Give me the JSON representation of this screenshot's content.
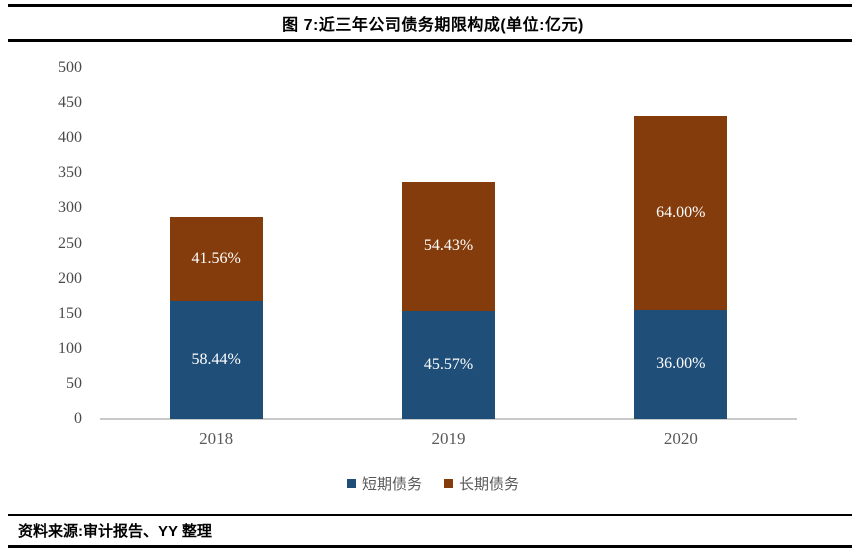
{
  "header": {
    "title": "图 7:近三年公司债务期限构成(单位:亿元)"
  },
  "footer": {
    "source": "资料来源:审计报告、YY 整理"
  },
  "chart_data": {
    "type": "bar",
    "subtype": "stacked",
    "title": "图 7:近三年公司债务期限构成(单位:亿元)",
    "unit": "亿元",
    "categories": [
      "2018",
      "2019",
      "2020"
    ],
    "series": [
      {
        "name": "短期债务",
        "color": "#1F4E79",
        "values": [
          168.3,
          154.0,
          155.5
        ],
        "percent_labels": [
          "58.44%",
          "45.57%",
          "36.00%"
        ]
      },
      {
        "name": "长期债务",
        "color": "#843C0C",
        "values": [
          119.7,
          184.0,
          276.5
        ],
        "percent_labels": [
          "41.56%",
          "54.43%",
          "64.00%"
        ]
      }
    ],
    "totals": [
      288,
      338,
      432
    ],
    "xlabel": "",
    "ylabel": "",
    "ylim": [
      0,
      500
    ],
    "ytick_step": 50,
    "grid": false,
    "legend_position": "bottom",
    "axis_color": "#C9C9C9",
    "tick_label_color": "#595959",
    "bar_label_color": "#FFFFFF"
  }
}
